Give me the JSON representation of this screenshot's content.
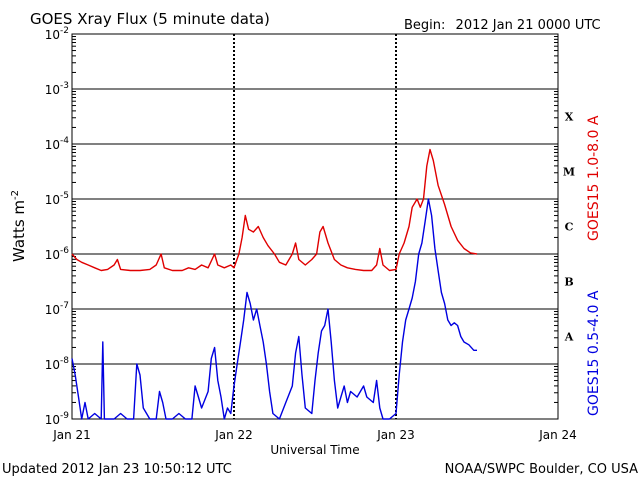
{
  "header": {
    "title": "GOES Xray Flux (5 minute data)",
    "begin_label": "Begin:",
    "begin_date": "2012 Jan 21 0000 UTC"
  },
  "footer": {
    "updated": "Updated 2012 Jan 23 10:50:12 UTC",
    "credit": "NOAA/SWPC Boulder, CO USA"
  },
  "colors": {
    "long": "#e00000",
    "short": "#0000e0",
    "grid": "#000000"
  },
  "chart_data": {
    "type": "line",
    "title": "GOES Xray Flux (5 minute data)",
    "xlabel": "Universal Time",
    "ylabel": "Watts m",
    "ylabel_sup": "-2",
    "x_unit": "days since 2012 Jan 21 0000 UTC",
    "xlim": [
      0,
      3
    ],
    "ylim_log10": [
      -9,
      -2
    ],
    "log_scale_y": true,
    "x_ticks": [
      {
        "x": 0,
        "label": "Jan 21"
      },
      {
        "x": 1,
        "label": "Jan 22"
      },
      {
        "x": 2,
        "label": "Jan 23"
      },
      {
        "x": 3,
        "label": "Jan 24"
      }
    ],
    "y_ticks": [
      {
        "exp": -9,
        "label": "-9"
      },
      {
        "exp": -8,
        "label": "-8"
      },
      {
        "exp": -7,
        "label": "-7"
      },
      {
        "exp": -6,
        "label": "-6"
      },
      {
        "exp": -5,
        "label": "-5"
      },
      {
        "exp": -4,
        "label": "-4"
      },
      {
        "exp": -3,
        "label": "-3"
      },
      {
        "exp": -2,
        "label": "-2"
      }
    ],
    "flare_classes": [
      {
        "label": "A",
        "exp": -8
      },
      {
        "label": "B",
        "exp": -7
      },
      {
        "label": "C",
        "exp": -6
      },
      {
        "label": "M",
        "exp": -5
      },
      {
        "label": "X",
        "exp": -4
      }
    ],
    "series": [
      {
        "name": "GOES15 1.0-8.0 A",
        "color": "#e00000",
        "points": [
          [
            0.0,
            -6.0
          ],
          [
            0.03,
            -6.1
          ],
          [
            0.06,
            -6.15
          ],
          [
            0.1,
            -6.2
          ],
          [
            0.14,
            -6.25
          ],
          [
            0.18,
            -6.3
          ],
          [
            0.22,
            -6.28
          ],
          [
            0.26,
            -6.2
          ],
          [
            0.28,
            -6.1
          ],
          [
            0.3,
            -6.28
          ],
          [
            0.36,
            -6.3
          ],
          [
            0.42,
            -6.3
          ],
          [
            0.48,
            -6.28
          ],
          [
            0.52,
            -6.2
          ],
          [
            0.55,
            -6.0
          ],
          [
            0.57,
            -6.25
          ],
          [
            0.62,
            -6.3
          ],
          [
            0.68,
            -6.3
          ],
          [
            0.72,
            -6.25
          ],
          [
            0.76,
            -6.28
          ],
          [
            0.8,
            -6.2
          ],
          [
            0.84,
            -6.25
          ],
          [
            0.88,
            -6.0
          ],
          [
            0.9,
            -6.2
          ],
          [
            0.94,
            -6.25
          ],
          [
            0.98,
            -6.2
          ],
          [
            1.0,
            -6.25
          ],
          [
            1.03,
            -6.0
          ],
          [
            1.05,
            -5.7
          ],
          [
            1.07,
            -5.3
          ],
          [
            1.09,
            -5.55
          ],
          [
            1.12,
            -5.6
          ],
          [
            1.15,
            -5.5
          ],
          [
            1.18,
            -5.7
          ],
          [
            1.21,
            -5.85
          ],
          [
            1.25,
            -6.0
          ],
          [
            1.28,
            -6.15
          ],
          [
            1.32,
            -6.2
          ],
          [
            1.36,
            -6.0
          ],
          [
            1.38,
            -5.8
          ],
          [
            1.4,
            -6.1
          ],
          [
            1.44,
            -6.2
          ],
          [
            1.48,
            -6.1
          ],
          [
            1.51,
            -6.0
          ],
          [
            1.53,
            -5.6
          ],
          [
            1.55,
            -5.5
          ],
          [
            1.58,
            -5.8
          ],
          [
            1.62,
            -6.1
          ],
          [
            1.66,
            -6.2
          ],
          [
            1.7,
            -6.25
          ],
          [
            1.75,
            -6.28
          ],
          [
            1.8,
            -6.3
          ],
          [
            1.85,
            -6.3
          ],
          [
            1.88,
            -6.2
          ],
          [
            1.9,
            -5.9
          ],
          [
            1.92,
            -6.2
          ],
          [
            1.96,
            -6.3
          ],
          [
            2.0,
            -6.28
          ],
          [
            2.02,
            -6.0
          ],
          [
            2.05,
            -5.8
          ],
          [
            2.08,
            -5.5
          ],
          [
            2.1,
            -5.15
          ],
          [
            2.13,
            -5.0
          ],
          [
            2.15,
            -5.15
          ],
          [
            2.17,
            -5.0
          ],
          [
            2.19,
            -4.4
          ],
          [
            2.21,
            -4.1
          ],
          [
            2.23,
            -4.3
          ],
          [
            2.26,
            -4.75
          ],
          [
            2.3,
            -5.1
          ],
          [
            2.34,
            -5.5
          ],
          [
            2.38,
            -5.75
          ],
          [
            2.42,
            -5.9
          ],
          [
            2.46,
            -5.98
          ],
          [
            2.5,
            -6.0
          ]
        ]
      },
      {
        "name": "GOES15 0.5-4.0 A",
        "color": "#0000e0",
        "points": [
          [
            0.0,
            -7.9
          ],
          [
            0.02,
            -8.2
          ],
          [
            0.04,
            -8.6
          ],
          [
            0.06,
            -9.0
          ],
          [
            0.08,
            -8.7
          ],
          [
            0.1,
            -9.0
          ],
          [
            0.14,
            -8.9
          ],
          [
            0.18,
            -9.0
          ],
          [
            0.19,
            -7.6
          ],
          [
            0.2,
            -9.0
          ],
          [
            0.26,
            -9.0
          ],
          [
            0.3,
            -8.9
          ],
          [
            0.34,
            -9.0
          ],
          [
            0.38,
            -9.0
          ],
          [
            0.4,
            -8.0
          ],
          [
            0.42,
            -8.2
          ],
          [
            0.44,
            -8.8
          ],
          [
            0.48,
            -9.0
          ],
          [
            0.52,
            -9.0
          ],
          [
            0.54,
            -8.5
          ],
          [
            0.56,
            -8.7
          ],
          [
            0.58,
            -9.0
          ],
          [
            0.62,
            -9.0
          ],
          [
            0.66,
            -8.9
          ],
          [
            0.7,
            -9.0
          ],
          [
            0.74,
            -9.0
          ],
          [
            0.76,
            -8.4
          ],
          [
            0.78,
            -8.6
          ],
          [
            0.8,
            -8.8
          ],
          [
            0.84,
            -8.5
          ],
          [
            0.86,
            -7.9
          ],
          [
            0.88,
            -7.7
          ],
          [
            0.9,
            -8.3
          ],
          [
            0.92,
            -8.6
          ],
          [
            0.94,
            -9.0
          ],
          [
            0.96,
            -8.8
          ],
          [
            0.98,
            -8.9
          ],
          [
            1.0,
            -8.4
          ],
          [
            1.02,
            -8.0
          ],
          [
            1.04,
            -7.6
          ],
          [
            1.06,
            -7.2
          ],
          [
            1.08,
            -6.7
          ],
          [
            1.1,
            -6.9
          ],
          [
            1.12,
            -7.2
          ],
          [
            1.14,
            -7.0
          ],
          [
            1.16,
            -7.3
          ],
          [
            1.18,
            -7.6
          ],
          [
            1.2,
            -8.0
          ],
          [
            1.22,
            -8.5
          ],
          [
            1.24,
            -8.9
          ],
          [
            1.28,
            -9.0
          ],
          [
            1.32,
            -8.7
          ],
          [
            1.36,
            -8.4
          ],
          [
            1.38,
            -7.8
          ],
          [
            1.4,
            -7.5
          ],
          [
            1.42,
            -8.2
          ],
          [
            1.44,
            -8.8
          ],
          [
            1.48,
            -8.9
          ],
          [
            1.5,
            -8.3
          ],
          [
            1.52,
            -7.8
          ],
          [
            1.54,
            -7.4
          ],
          [
            1.56,
            -7.3
          ],
          [
            1.58,
            -7.0
          ],
          [
            1.6,
            -7.6
          ],
          [
            1.62,
            -8.3
          ],
          [
            1.64,
            -8.8
          ],
          [
            1.66,
            -8.6
          ],
          [
            1.68,
            -8.4
          ],
          [
            1.7,
            -8.7
          ],
          [
            1.72,
            -8.5
          ],
          [
            1.76,
            -8.6
          ],
          [
            1.8,
            -8.4
          ],
          [
            1.82,
            -8.6
          ],
          [
            1.86,
            -8.7
          ],
          [
            1.88,
            -8.3
          ],
          [
            1.9,
            -8.8
          ],
          [
            1.92,
            -9.0
          ],
          [
            1.96,
            -9.0
          ],
          [
            2.0,
            -8.9
          ],
          [
            2.02,
            -8.2
          ],
          [
            2.04,
            -7.6
          ],
          [
            2.06,
            -7.2
          ],
          [
            2.08,
            -7.0
          ],
          [
            2.1,
            -6.8
          ],
          [
            2.12,
            -6.5
          ],
          [
            2.14,
            -6.0
          ],
          [
            2.16,
            -5.8
          ],
          [
            2.18,
            -5.4
          ],
          [
            2.2,
            -5.0
          ],
          [
            2.22,
            -5.3
          ],
          [
            2.24,
            -5.9
          ],
          [
            2.26,
            -6.3
          ],
          [
            2.28,
            -6.7
          ],
          [
            2.3,
            -6.9
          ],
          [
            2.32,
            -7.2
          ],
          [
            2.34,
            -7.3
          ],
          [
            2.36,
            -7.25
          ],
          [
            2.38,
            -7.3
          ],
          [
            2.4,
            -7.5
          ],
          [
            2.42,
            -7.6
          ],
          [
            2.45,
            -7.65
          ],
          [
            2.48,
            -7.75
          ],
          [
            2.5,
            -7.75
          ]
        ]
      }
    ]
  }
}
